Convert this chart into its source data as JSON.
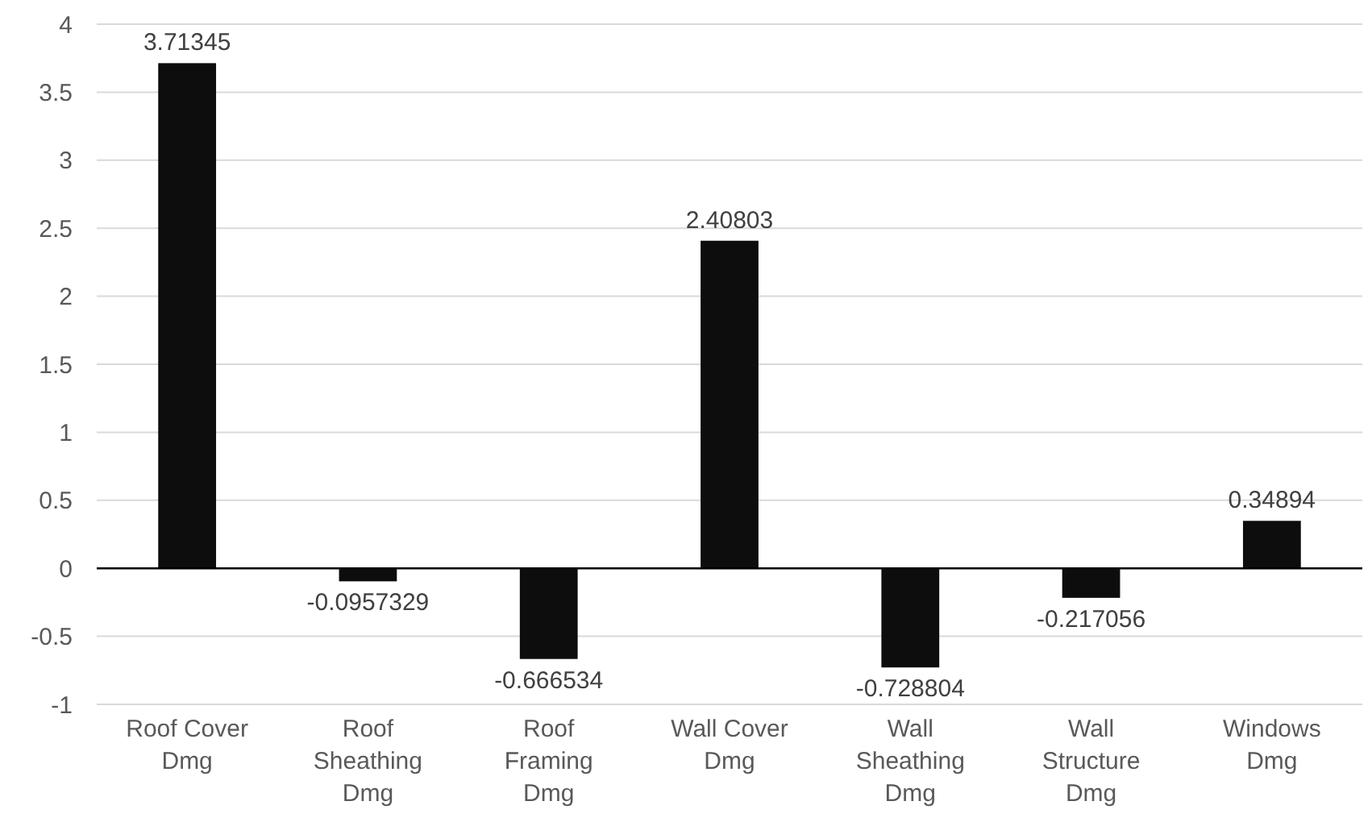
{
  "chart_data": {
    "type": "bar",
    "categories": [
      "Roof Cover Dmg",
      "Roof Sheathing Dmg",
      "Roof Framing Dmg",
      "Wall Cover Dmg",
      "Wall Sheathing Dmg",
      "Wall Structure Dmg",
      "Windows Dmg"
    ],
    "values": [
      3.71345,
      -0.0957329,
      -0.666534,
      2.40803,
      -0.728804,
      -0.217056,
      0.34894
    ],
    "color": "#0d0d0d",
    "ylim": [
      -1,
      4
    ],
    "yticks": [
      -1,
      -0.5,
      0,
      0.5,
      1,
      1.5,
      2,
      2.5,
      3,
      3.5,
      4
    ],
    "grid": "y",
    "data_labels": true
  }
}
